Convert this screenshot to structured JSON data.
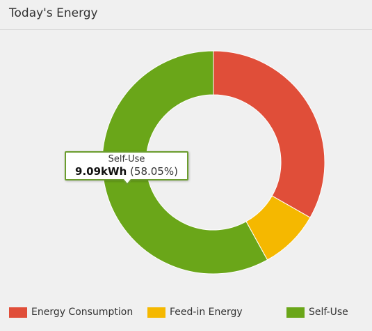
{
  "panel": {
    "title": "Today's Energy"
  },
  "chart_data": {
    "type": "pie",
    "donut": true,
    "title": "",
    "legend_position": "bottom",
    "series": [
      {
        "name": "Energy Consumption",
        "value": 33.24,
        "color": "#e04e39"
      },
      {
        "name": "Feed-in Energy",
        "value": 8.71,
        "color": "#f5b800"
      },
      {
        "name": "Self-Use",
        "value": 58.05,
        "color": "#6aa619"
      }
    ],
    "tooltip": {
      "series_name": "Self-Use",
      "value": "9.09kWh",
      "percent": "(58.05%)"
    }
  }
}
